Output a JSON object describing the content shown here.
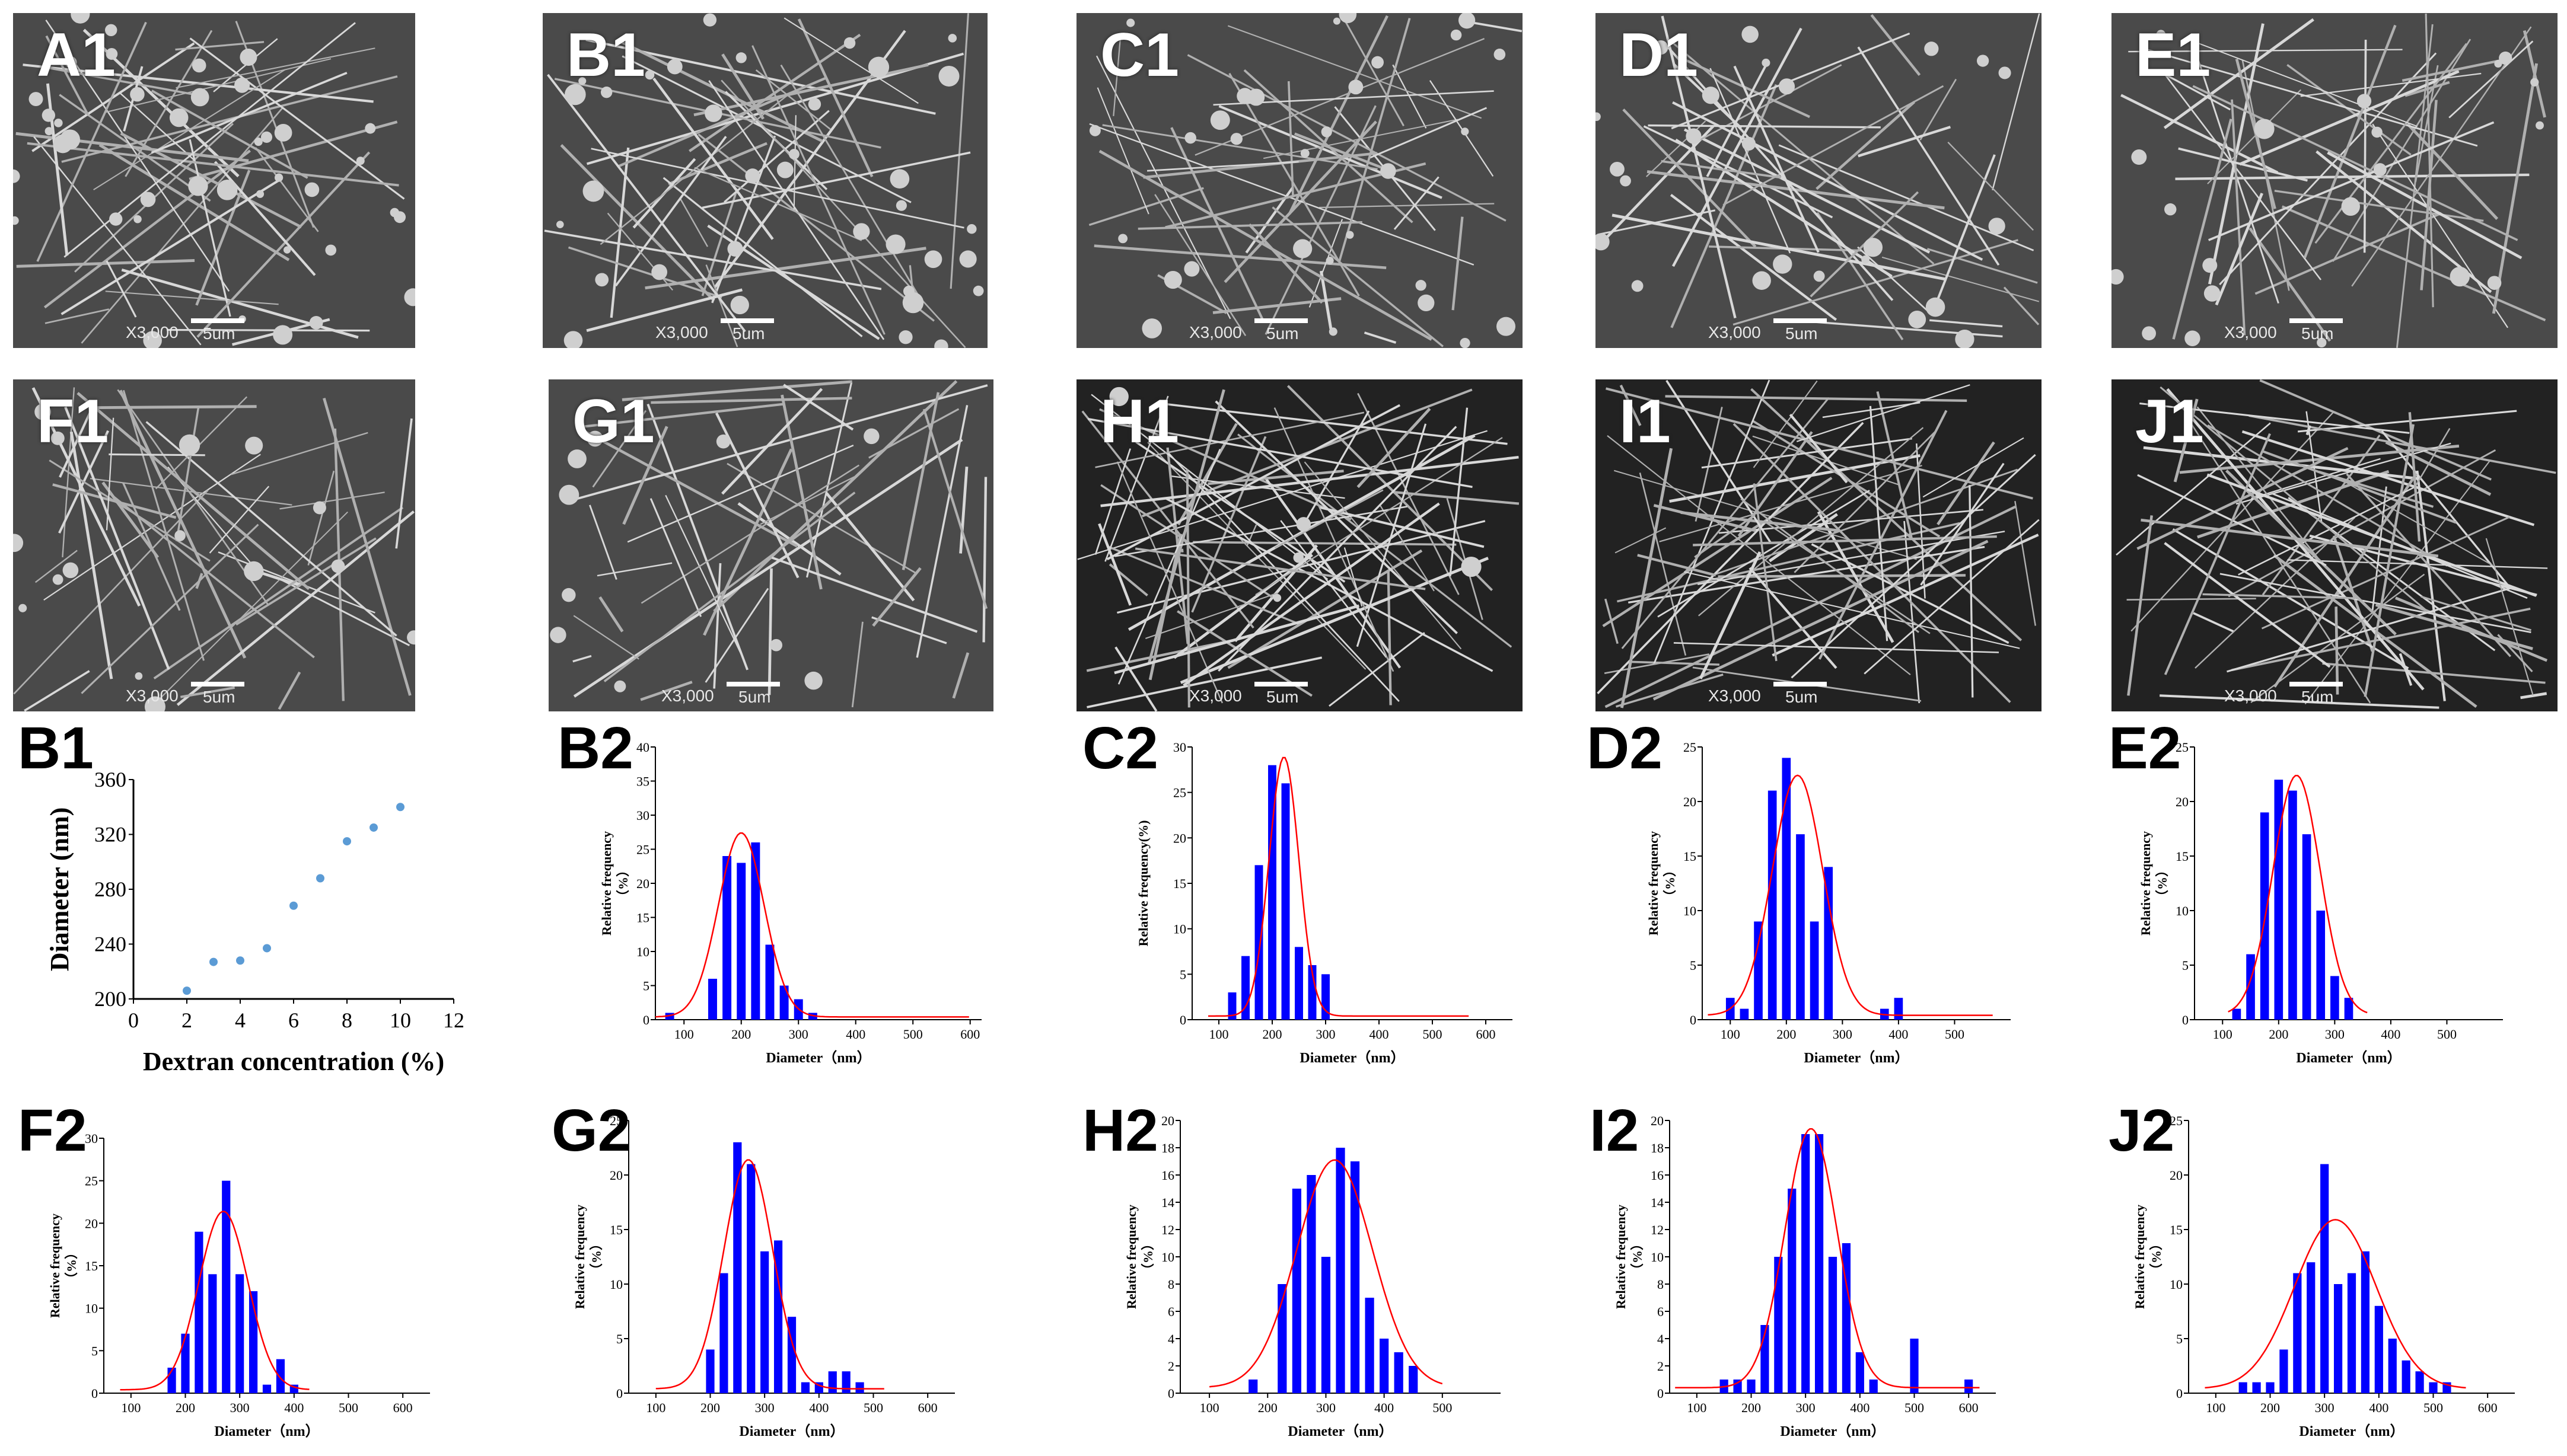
{
  "sem_panels": [
    {
      "label": "A1",
      "magnification": "X3,000",
      "scale": "5um"
    },
    {
      "label": "B1",
      "magnification": "X3,000",
      "scale": "5um"
    },
    {
      "label": "C1",
      "magnification": "X3,000",
      "scale": "5um"
    },
    {
      "label": "D1",
      "magnification": "X3,000",
      "scale": "5um"
    },
    {
      "label": "E1",
      "magnification": "X3,000",
      "scale": "5um"
    },
    {
      "label": "F1",
      "magnification": "X3,000",
      "scale": "5um"
    },
    {
      "label": "G1",
      "magnification": "X3,000",
      "scale": "5um"
    },
    {
      "label": "H1",
      "magnification": "X3,000",
      "scale": "5um"
    },
    {
      "label": "I1",
      "magnification": "X3,000",
      "scale": "5um"
    },
    {
      "label": "J1",
      "magnification": "X3,000",
      "scale": "5um"
    }
  ],
  "colors": {
    "bar": "#0000ff",
    "fit": "#ff0000",
    "scatter": "#5b9bd5",
    "axis": "#000000"
  },
  "chart_data": [
    {
      "panel": "B1",
      "type": "scatter",
      "xlabel": "Dextran concentration (%)",
      "ylabel": "Diameter (nm)",
      "xlim": [
        0,
        12
      ],
      "ylim": [
        200,
        360
      ],
      "xticks": [
        0,
        2,
        4,
        6,
        8,
        10,
        12
      ],
      "yticks": [
        200,
        240,
        280,
        320,
        360
      ],
      "x": [
        2,
        3,
        4,
        5,
        6,
        7,
        8,
        9,
        10
      ],
      "y": [
        206,
        227,
        228,
        237,
        268,
        288,
        315,
        325,
        340
      ]
    },
    {
      "panel": "B2",
      "type": "bar",
      "xlabel": "Diameter（nm）",
      "ylabel": "Relative frequency\n（%）",
      "xlim": [
        50,
        620
      ],
      "ylim": [
        0,
        40
      ],
      "xticks": [
        100,
        200,
        300,
        400,
        500,
        600
      ],
      "yticks": [
        0,
        5,
        10,
        15,
        20,
        25,
        30,
        35,
        40
      ],
      "x": [
        75,
        125,
        150,
        175,
        200,
        225,
        250,
        275,
        300,
        325,
        350
      ],
      "values": [
        1,
        0,
        6,
        24,
        23,
        26,
        11,
        5,
        3,
        1,
        0
      ],
      "fit": {
        "mu": 200,
        "sigma": 40,
        "peak": 27,
        "range": [
          50,
          600
        ]
      }
    },
    {
      "panel": "C2",
      "type": "bar",
      "xlabel": "Diameter（nm）",
      "ylabel": "Relative frequency(%)",
      "xlim": [
        50,
        650
      ],
      "ylim": [
        0,
        30
      ],
      "xticks": [
        100,
        200,
        300,
        400,
        500,
        600
      ],
      "yticks": [
        0,
        5,
        10,
        15,
        20,
        25,
        30
      ],
      "x": [
        125,
        150,
        175,
        200,
        225,
        250,
        275,
        300,
        325
      ],
      "values": [
        3,
        7,
        17,
        28,
        26,
        8,
        6,
        5,
        0
      ],
      "fit": {
        "mu": 222,
        "sigma": 28,
        "peak": 28.5,
        "range": [
          80,
          570
        ]
      }
    },
    {
      "panel": "D2",
      "type": "bar",
      "xlabel": "Diameter（nm）",
      "ylabel": "Relative frequency\n（%）",
      "xlim": [
        50,
        600
      ],
      "ylim": [
        0,
        25
      ],
      "xticks": [
        100,
        200,
        300,
        400,
        500
      ],
      "yticks": [
        0,
        5,
        10,
        15,
        20,
        25
      ],
      "x": [
        100,
        125,
        150,
        175,
        200,
        225,
        250,
        275,
        300,
        375,
        400
      ],
      "values": [
        2,
        1,
        9,
        21,
        24,
        17,
        9,
        14,
        0,
        1,
        2
      ],
      "fit": {
        "mu": 220,
        "sigma": 45,
        "peak": 22,
        "range": [
          60,
          570
        ]
      }
    },
    {
      "panel": "E2",
      "type": "bar",
      "xlabel": "Diameter（nm）",
      "ylabel": "Relative frequency\n（%）",
      "xlim": [
        50,
        600
      ],
      "ylim": [
        0,
        25
      ],
      "xticks": [
        100,
        200,
        300,
        400,
        500
      ],
      "yticks": [
        0,
        5,
        10,
        15,
        20,
        25
      ],
      "x": [
        125,
        150,
        175,
        200,
        225,
        250,
        275,
        300,
        325,
        350
      ],
      "values": [
        1,
        6,
        19,
        22,
        21,
        17,
        10,
        4,
        2,
        0
      ],
      "fit": {
        "mu": 232,
        "sigma": 42,
        "peak": 22,
        "range": [
          110,
          360
        ]
      }
    },
    {
      "panel": "F2",
      "type": "bar",
      "xlabel": "Diameter（nm）",
      "ylabel": "Relative frequency\n（%）",
      "xlim": [
        50,
        650
      ],
      "ylim": [
        0,
        30
      ],
      "xticks": [
        100,
        200,
        300,
        400,
        500,
        600
      ],
      "yticks": [
        0,
        5,
        10,
        15,
        20,
        25,
        30
      ],
      "x": [
        175,
        200,
        225,
        250,
        275,
        300,
        325,
        350,
        375,
        400,
        425
      ],
      "values": [
        3,
        7,
        19,
        14,
        25,
        14,
        12,
        1,
        4,
        1,
        0
      ],
      "fit": {
        "mu": 270,
        "sigma": 45,
        "peak": 21,
        "range": [
          80,
          430
        ]
      }
    },
    {
      "panel": "G2",
      "type": "bar",
      "xlabel": "Diameter（nm）",
      "ylabel": "Relative frequency\n（%）",
      "xlim": [
        50,
        650
      ],
      "ylim": [
        0,
        25
      ],
      "xticks": [
        100,
        200,
        300,
        400,
        500,
        600
      ],
      "yticks": [
        0,
        5,
        10,
        15,
        20,
        25
      ],
      "x": [
        200,
        225,
        250,
        275,
        300,
        325,
        350,
        375,
        400,
        425,
        450,
        475,
        500
      ],
      "values": [
        4,
        11,
        23,
        21,
        13,
        14,
        7,
        1,
        1,
        2,
        2,
        1,
        0
      ],
      "fit": {
        "mu": 270,
        "sigma": 45,
        "peak": 21,
        "range": [
          100,
          520
        ]
      }
    },
    {
      "panel": "H2",
      "type": "bar",
      "xlabel": "Diameter（nm）",
      "ylabel": "Relative frequency\n（%）",
      "xlim": [
        50,
        600
      ],
      "ylim": [
        0,
        20
      ],
      "xticks": [
        100,
        200,
        300,
        400,
        500
      ],
      "yticks": [
        0,
        2,
        4,
        6,
        8,
        10,
        12,
        14,
        16,
        18,
        20
      ],
      "x": [
        175,
        225,
        250,
        275,
        300,
        325,
        350,
        375,
        400,
        425,
        450
      ],
      "values": [
        1,
        8,
        15,
        16,
        10,
        18,
        17,
        7,
        4,
        3,
        2
      ],
      "fit": {
        "mu": 315,
        "sigma": 65,
        "peak": 16.7,
        "range": [
          100,
          500
        ]
      }
    },
    {
      "panel": "I2",
      "type": "bar",
      "xlabel": "Diameter（nm）",
      "ylabel": "Relative frequency\n（%）",
      "xlim": [
        50,
        650
      ],
      "ylim": [
        0,
        20
      ],
      "xticks": [
        100,
        200,
        300,
        400,
        500,
        600
      ],
      "yticks": [
        0,
        2,
        4,
        6,
        8,
        10,
        12,
        14,
        16,
        18,
        20
      ],
      "x": [
        150,
        175,
        200,
        225,
        250,
        275,
        300,
        325,
        350,
        375,
        400,
        425,
        500,
        600
      ],
      "values": [
        1,
        1,
        1,
        5,
        10,
        15,
        19,
        19,
        10,
        11,
        3,
        1,
        4,
        1
      ],
      "fit": {
        "mu": 310,
        "sigma": 48,
        "peak": 19,
        "range": [
          60,
          620
        ]
      }
    },
    {
      "panel": "J2",
      "type": "bar",
      "xlabel": "Diameter（nm）",
      "ylabel": "Relative frequency\n（%）",
      "xlim": [
        50,
        650
      ],
      "ylim": [
        0,
        25
      ],
      "xticks": [
        100,
        200,
        300,
        400,
        500,
        600
      ],
      "yticks": [
        0,
        5,
        10,
        15,
        20,
        25
      ],
      "x": [
        150,
        175,
        200,
        225,
        250,
        275,
        300,
        325,
        350,
        375,
        400,
        425,
        450,
        475,
        500,
        525
      ],
      "values": [
        1,
        1,
        1,
        4,
        11,
        12,
        21,
        10,
        11,
        13,
        8,
        5,
        3,
        2,
        1,
        1
      ],
      "fit": {
        "mu": 320,
        "sigma": 75,
        "peak": 15.5,
        "range": [
          80,
          560
        ]
      }
    }
  ]
}
